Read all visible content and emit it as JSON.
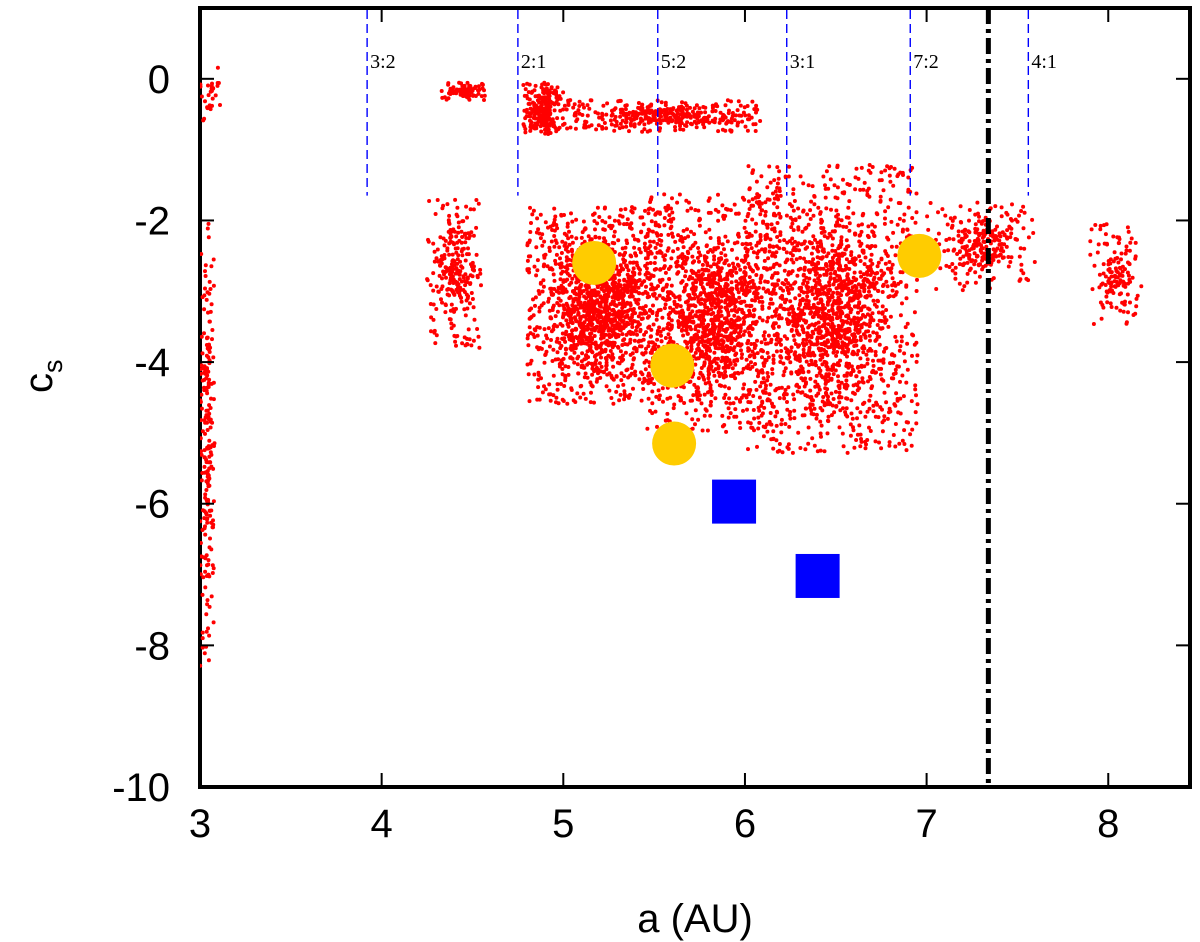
{
  "chart_data": {
    "type": "scatter",
    "title": "",
    "xlabel": "a (AU)",
    "ylabel_main": "c",
    "ylabel_sub": "s",
    "xlim": [
      3.0,
      8.45
    ],
    "ylim": [
      -10,
      1.0
    ],
    "xticks": [
      3,
      4,
      5,
      6,
      7,
      8
    ],
    "xtick_labels": [
      "3",
      "4",
      "5",
      "6",
      "7",
      "8"
    ],
    "yticks": [
      0,
      -2,
      -4,
      -6,
      -8,
      -10
    ],
    "ytick_labels": [
      "0",
      "-2",
      "-4",
      "-6",
      "-8",
      "-10"
    ],
    "grid": false,
    "colors": {
      "points": "#ff0000",
      "circles": "#ffcc00",
      "squares": "#0000ff",
      "resonance_lines": "#0000ff",
      "boundary_line": "#000000"
    },
    "resonances": [
      {
        "label": "3:2",
        "a": 3.92,
        "c_bottom": -1.65
      },
      {
        "label": "2:1",
        "a": 4.75,
        "c_bottom": -1.65
      },
      {
        "label": "5:2",
        "a": 5.52,
        "c_bottom": -1.65
      },
      {
        "label": "3:1",
        "a": 6.23,
        "c_bottom": -1.65
      },
      {
        "label": "7:2",
        "a": 6.91,
        "c_bottom": -1.65
      },
      {
        "label": "4:1",
        "a": 7.56,
        "c_bottom": -1.65
      }
    ],
    "boundary": {
      "a": 7.34,
      "style": "dash-dot"
    },
    "highlighted_circles": [
      {
        "a": 5.17,
        "c": -2.6
      },
      {
        "a": 5.6,
        "c": -4.05
      },
      {
        "a": 5.61,
        "c": -5.15
      },
      {
        "a": 6.96,
        "c": -2.5
      }
    ],
    "highlighted_squares": [
      {
        "a": 5.94,
        "c": -5.97
      },
      {
        "a": 6.4,
        "c": -7.02
      }
    ],
    "clusters": [
      {
        "name": "hilda-like-3.0",
        "a_min": 3.0,
        "a_max": 3.08,
        "c_min": -8.3,
        "c_max": -1.9,
        "count": 220
      },
      {
        "name": "top-3.0",
        "a_min": 3.0,
        "a_max": 3.12,
        "c_min": -0.6,
        "c_max": 0.2,
        "count": 30
      },
      {
        "name": "group-4.3",
        "a_min": 4.25,
        "a_max": 4.55,
        "c_min": -3.8,
        "c_max": -1.7,
        "count": 260
      },
      {
        "name": "top-4.45",
        "a_min": 4.33,
        "a_max": 4.57,
        "c_min": -0.3,
        "c_max": -0.05,
        "count": 90
      },
      {
        "name": "band-2to1",
        "a_min": 4.78,
        "a_max": 5.0,
        "c_min": -0.8,
        "c_max": -0.05,
        "count": 240
      },
      {
        "name": "band-top",
        "a_min": 5.0,
        "a_max": 6.1,
        "c_min": -0.75,
        "c_max": -0.3,
        "count": 380
      },
      {
        "name": "main-5.0-5.6",
        "a_min": 4.8,
        "a_max": 5.6,
        "c_min": -4.6,
        "c_max": -1.8,
        "count": 1500
      },
      {
        "name": "main-5.5-6.2",
        "a_min": 5.45,
        "a_max": 6.2,
        "c_min": -5.0,
        "c_max": -1.6,
        "count": 1300
      },
      {
        "name": "main-6.0-6.9",
        "a_min": 6.0,
        "a_max": 6.95,
        "c_min": -5.3,
        "c_max": -1.2,
        "count": 1700
      },
      {
        "name": "tail-7.0-7.6",
        "a_min": 7.0,
        "a_max": 7.6,
        "c_min": -3.0,
        "c_max": -1.7,
        "count": 260
      },
      {
        "name": "group-8.0",
        "a_min": 7.9,
        "a_max": 8.2,
        "c_min": -3.5,
        "c_max": -2.0,
        "count": 140
      }
    ]
  }
}
